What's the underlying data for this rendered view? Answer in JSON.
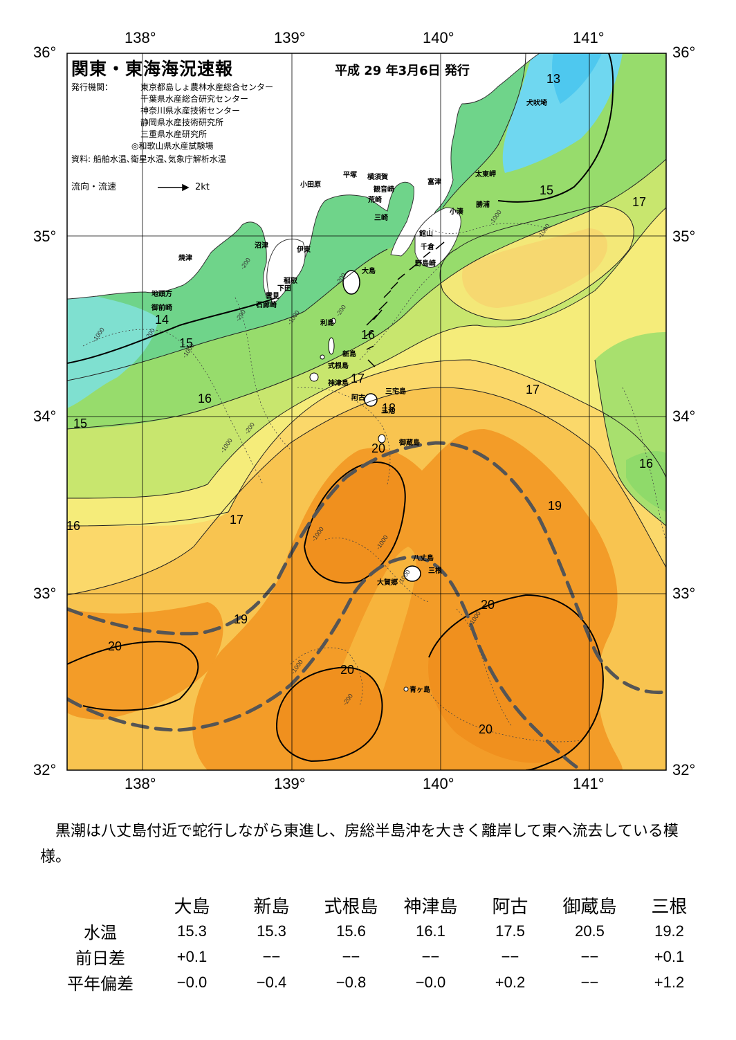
{
  "map": {
    "title": "関東・東海海況速報",
    "date": "平成 29 年3月6日 発行",
    "issuers_label": "発行機関：",
    "issuers": [
      "東京都島しょ農林水産総合センター",
      "千葉県水産総合研究センター",
      "神奈川県水産技術センター",
      "静岡県水産技術研究所",
      "三重県水産研究所",
      "◎和歌山県水産試験場"
    ],
    "source": "資料: 船舶水温､衛星水温､気象庁解析水温",
    "current_legend": "流向・流速",
    "current_scale": "2kt",
    "lon_labels": [
      "138°",
      "139°",
      "140°",
      "141°"
    ],
    "lat_labels": [
      "36°",
      "35°",
      "34°",
      "33°",
      "32°"
    ],
    "places": [
      {
        "name": "犬吠埼"
      },
      {
        "name": "太東岬"
      },
      {
        "name": "勝浦"
      },
      {
        "name": "小湊"
      },
      {
        "name": "富津"
      },
      {
        "name": "横須賀"
      },
      {
        "name": "観音崎"
      },
      {
        "name": "荒崎"
      },
      {
        "name": "三崎"
      },
      {
        "name": "平塚"
      },
      {
        "name": "小田原"
      },
      {
        "name": "館山"
      },
      {
        "name": "千倉"
      },
      {
        "name": "野島崎"
      },
      {
        "name": "沼津"
      },
      {
        "name": "伊東"
      },
      {
        "name": "焼津"
      },
      {
        "name": "稲取"
      },
      {
        "name": "下田"
      },
      {
        "name": "雲見"
      },
      {
        "name": "石廊崎"
      },
      {
        "name": "地頭方"
      },
      {
        "name": "御前崎"
      },
      {
        "name": "大島"
      },
      {
        "name": "利島"
      },
      {
        "name": "新島"
      },
      {
        "name": "式根島"
      },
      {
        "name": "神津島"
      },
      {
        "name": "三宅島"
      },
      {
        "name": "阿古"
      },
      {
        "name": "三池"
      },
      {
        "name": "御蔵島"
      },
      {
        "name": "八丈島"
      },
      {
        "name": "三根"
      },
      {
        "name": "大賀郷"
      },
      {
        "name": "青ヶ島"
      }
    ],
    "isotherm_labels": [
      "13",
      "15",
      "17",
      "14",
      "15",
      "16",
      "15",
      "16",
      "17",
      "18",
      "16",
      "17",
      "16",
      "20",
      "19",
      "17",
      "19",
      "20",
      "20",
      "20",
      "20",
      "20",
      "16"
    ],
    "depth_labels": [
      "-1000",
      "-200",
      "-200",
      "-1000",
      "-200",
      "-1000",
      "-200",
      "-200",
      "-1000",
      "-1000",
      "-1000",
      "-1000",
      "-200",
      "-1000",
      "-1000",
      "-1000",
      "-1000",
      "-200"
    ],
    "colors": {
      "t13": "#7fd8f4",
      "t14": "#8ee8e0",
      "t15": "#7ed9a4",
      "t16": "#8fdb70",
      "t17": "#d8ec78",
      "t18": "#f6ec7c",
      "t19": "#f8c450",
      "t20": "#f39c28",
      "kuroshio": "#555555",
      "land": "#ffffff"
    }
  },
  "description": "黒潮は八丈島付近で蛇行しながら東進し、房総半島沖を大きく離岸して東へ流去している模様。",
  "table": {
    "columns": [
      "大島",
      "新島",
      "式根島",
      "神津島",
      "阿古",
      "御蔵島",
      "三根"
    ],
    "rows": [
      {
        "label": "水温",
        "values": [
          "15.3",
          "15.3",
          "15.6",
          "16.1",
          "17.5",
          "20.5",
          "19.2"
        ]
      },
      {
        "label": "前日差",
        "values": [
          "+0.1",
          "−−",
          "−−",
          "−−",
          "−−",
          "−−",
          "+0.1"
        ]
      },
      {
        "label": "平年偏差",
        "values": [
          "−0.0",
          "−0.4",
          "−0.8",
          "−0.0",
          "+0.2",
          "−−",
          "+1.2"
        ]
      }
    ]
  }
}
